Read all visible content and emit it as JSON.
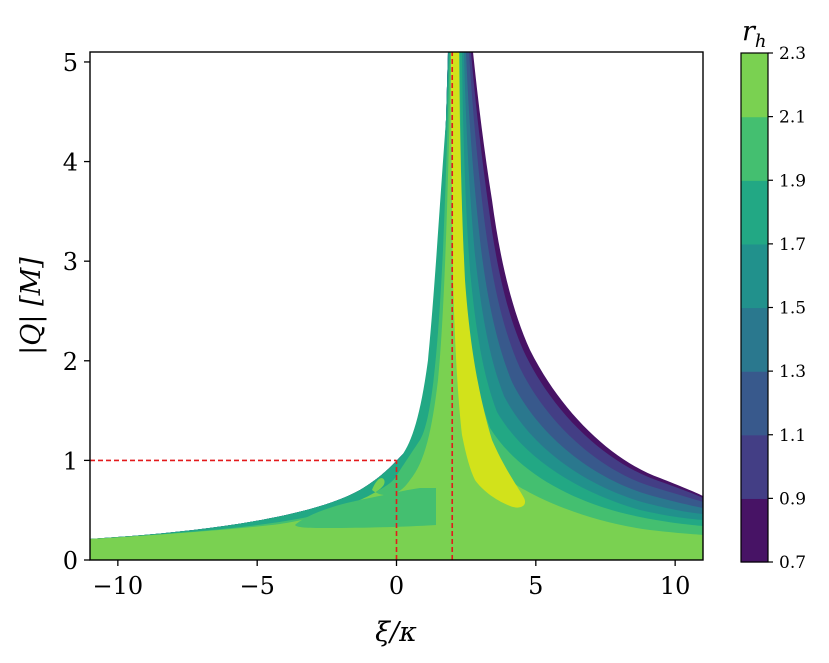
{
  "chart_data": {
    "type": "contour",
    "xlabel": "ξ/κ",
    "ylabel": "|Q| [M]",
    "colorbar_label": "r_h",
    "colorbar_label_main": "r",
    "colorbar_label_sub": "h",
    "xlim": [
      -11,
      11
    ],
    "ylim": [
      0,
      5.1
    ],
    "x_ticks": [
      -10,
      -5,
      0,
      5,
      10
    ],
    "x_tick_labels": [
      "−10",
      "−5",
      "0",
      "5",
      "10"
    ],
    "y_ticks": [
      0,
      1,
      2,
      3,
      4,
      5
    ],
    "y_tick_labels": [
      "0",
      "1",
      "2",
      "3",
      "4",
      "5"
    ],
    "colorbar_levels": [
      0.7,
      0.9,
      1.1,
      1.3,
      1.5,
      1.7,
      1.9,
      2.1,
      2.3
    ],
    "colorbar_tick_labels": [
      "0.7",
      "0.9",
      "1.1",
      "1.3",
      "1.5",
      "1.7",
      "1.9",
      "2.1",
      "2.3"
    ],
    "colormap": [
      "#471365",
      "#433e85",
      "#38598c",
      "#2a788e",
      "#21918c",
      "#22a884",
      "#44bf70",
      "#7ad151",
      "#d2e21b"
    ],
    "reference_lines": [
      {
        "orientation": "vertical",
        "x": 0,
        "y_range": [
          0,
          1
        ],
        "color": "#e31a1c",
        "style": "dashed"
      },
      {
        "orientation": "horizontal",
        "y": 1,
        "x_range": [
          -11,
          0
        ],
        "color": "#e31a1c",
        "style": "dashed"
      },
      {
        "orientation": "vertical",
        "x": 2,
        "y_range": [
          0,
          5.1
        ],
        "color": "#e31a1c",
        "style": "dashed"
      }
    ]
  }
}
